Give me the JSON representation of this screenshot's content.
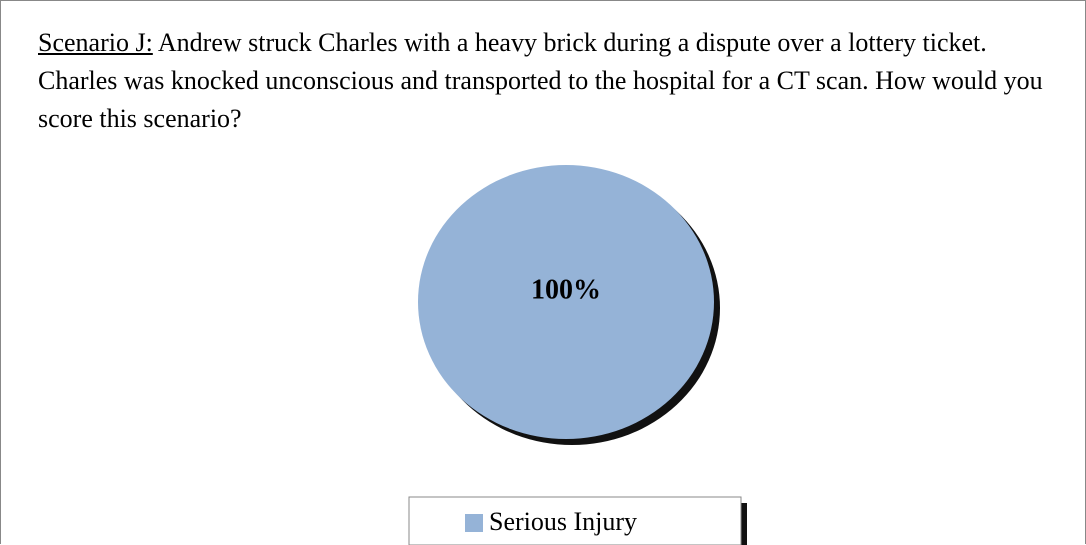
{
  "chart_data": {
    "type": "pie",
    "scenario": "Scenario J:",
    "title": "Andrew struck Charles with a heavy brick during a dispute over a lottery ticket. Charles was knocked unconscious and transported to the hospital for a CT scan. How would you score this scenario?",
    "categories": [
      "Serious Injury"
    ],
    "values": [
      100
    ],
    "value_labels": [
      "100%"
    ],
    "colors": [
      "#95b3d7"
    ],
    "legend": "bottom"
  }
}
